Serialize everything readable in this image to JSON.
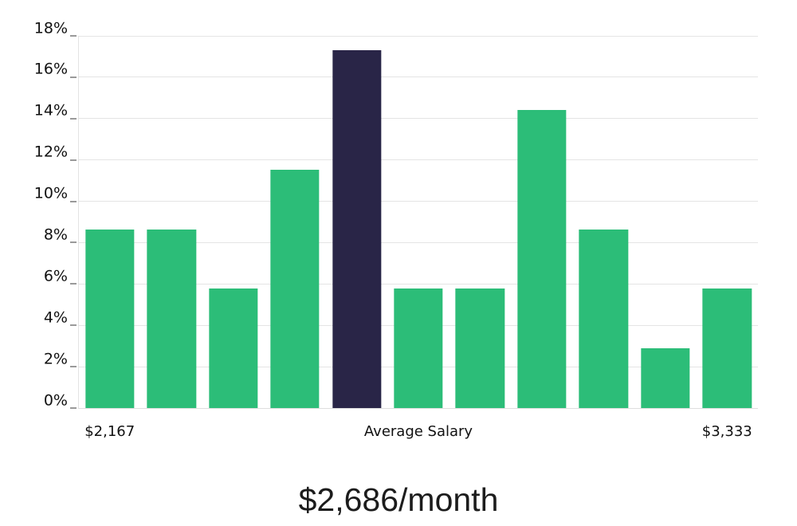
{
  "chart_data": {
    "type": "bar",
    "subtype": "histogram",
    "title": "$2,686/month",
    "xlabel": "",
    "ylabel": "",
    "ylim": [
      0,
      18
    ],
    "grid": true,
    "legend_position": "none",
    "num_bars": 11,
    "bars": [
      {
        "value": 8.65,
        "highlighted": false
      },
      {
        "value": 8.65,
        "highlighted": false
      },
      {
        "value": 5.77,
        "highlighted": false
      },
      {
        "value": 11.54,
        "highlighted": false
      },
      {
        "value": 17.31,
        "highlighted": true
      },
      {
        "value": 5.77,
        "highlighted": false
      },
      {
        "value": 5.77,
        "highlighted": false
      },
      {
        "value": 14.42,
        "highlighted": false
      },
      {
        "value": 8.65,
        "highlighted": false
      },
      {
        "value": 2.88,
        "highlighted": false
      },
      {
        "value": 5.77,
        "highlighted": false
      }
    ],
    "y_ticks": [
      {
        "value": 0,
        "label": "0%"
      },
      {
        "value": 2,
        "label": "2%"
      },
      {
        "value": 4,
        "label": "4%"
      },
      {
        "value": 6,
        "label": "6%"
      },
      {
        "value": 8,
        "label": "8%"
      },
      {
        "value": 10,
        "label": "10%"
      },
      {
        "value": 12,
        "label": "12%"
      },
      {
        "value": 14,
        "label": "14%"
      },
      {
        "value": 16,
        "label": "16%"
      },
      {
        "value": 18,
        "label": "18%"
      }
    ],
    "x_ticks": [
      {
        "bar_index": 0,
        "label": "$2,167"
      },
      {
        "bar_index": 5,
        "label": "Average Salary"
      },
      {
        "bar_index": 10,
        "label": "$3,333"
      }
    ],
    "colors": {
      "bar": "#2cbd78",
      "highlight_bar": "#292547",
      "gridline": "#e4e4e4",
      "axis_tick": "#9a9a9a",
      "label_text": "#111111",
      "title_text": "#1c1c1c",
      "background": "#ffffff"
    }
  }
}
